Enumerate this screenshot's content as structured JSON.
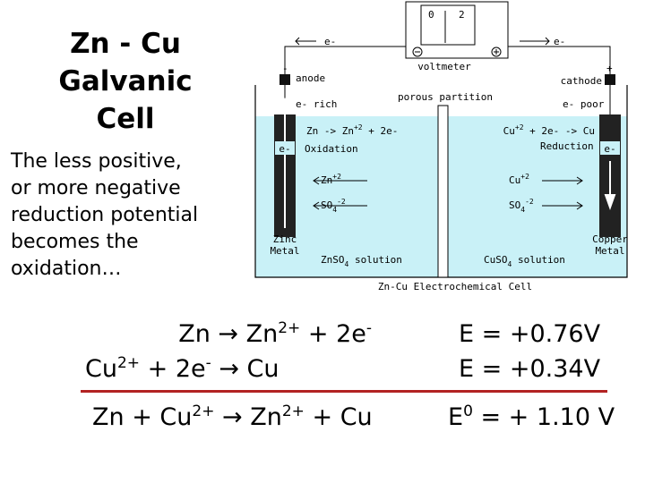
{
  "title": [
    "Zn - Cu",
    "Galvanic",
    "Cell"
  ],
  "description": [
    "The less positive,",
    "or more negative",
    "reduction potential",
    "becomes the",
    "oxidation…"
  ],
  "diagram": {
    "meter_scale": [
      "0",
      "2"
    ],
    "wire_left": "e-",
    "wire_right": "e-",
    "voltmeter": "voltmeter",
    "anode_sign": "-",
    "anode": "anode",
    "cathode_sign": "+",
    "cathode": "cathode",
    "left_electrons": "e- rich",
    "right_electrons": "e- poor",
    "partition": "porous partition",
    "oxidation_reaction": [
      {
        "t": "Zn -> Zn"
      },
      {
        "sup": "+2"
      },
      {
        "t": " + 2e-"
      }
    ],
    "oxidation": "Oxidation",
    "reduction_reaction": [
      {
        "t": "Cu"
      },
      {
        "sup": "+2"
      },
      {
        "t": " + 2e- -> Cu"
      }
    ],
    "reduction": "Reduction",
    "left_electrode_electron": "e-",
    "right_electrode_electron": "e-",
    "left_cation": [
      {
        "t": "Zn"
      },
      {
        "sup": "+2"
      }
    ],
    "left_anion": [
      {
        "t": "SO"
      },
      {
        "sub": "4"
      },
      {
        "sup": "-2"
      }
    ],
    "right_cation": [
      {
        "t": "Cu"
      },
      {
        "sup": "+2"
      }
    ],
    "right_anion": [
      {
        "t": "SO"
      },
      {
        "sub": "4"
      },
      {
        "sup": "-2"
      }
    ],
    "left_metal": [
      "Zinc",
      "Metal"
    ],
    "right_metal": [
      "Copper",
      "Metal"
    ],
    "left_solution": [
      {
        "t": "ZnSO"
      },
      {
        "sub": "4"
      },
      {
        "t": " solution"
      }
    ],
    "right_solution": [
      {
        "t": "CuSO"
      },
      {
        "sub": "4"
      },
      {
        "t": " solution"
      }
    ],
    "caption": "Zn-Cu Electrochemical Cell"
  },
  "equations": [
    {
      "reaction": [
        {
          "t": "Zn → Zn"
        },
        {
          "sup": "2+"
        },
        {
          "t": " + 2e"
        },
        {
          "sup": "-"
        }
      ],
      "potential": [
        {
          "t": "E = +0.76V"
        }
      ]
    },
    {
      "reaction": [
        {
          "t": "Cu"
        },
        {
          "sup": "2+"
        },
        {
          "t": " + 2e"
        },
        {
          "sup": "-"
        },
        {
          "t": " → Cu"
        }
      ],
      "potential": [
        {
          "t": "E = +0.34V"
        }
      ]
    },
    {
      "reaction": [
        {
          "t": "Zn + Cu"
        },
        {
          "sup": "2+"
        },
        {
          "t": " → Zn"
        },
        {
          "sup": "2+"
        },
        {
          "t": " + Cu"
        }
      ],
      "potential": [
        {
          "t": "E"
        },
        {
          "sup": "0"
        },
        {
          "t": " = + 1.10 V"
        }
      ]
    }
  ]
}
